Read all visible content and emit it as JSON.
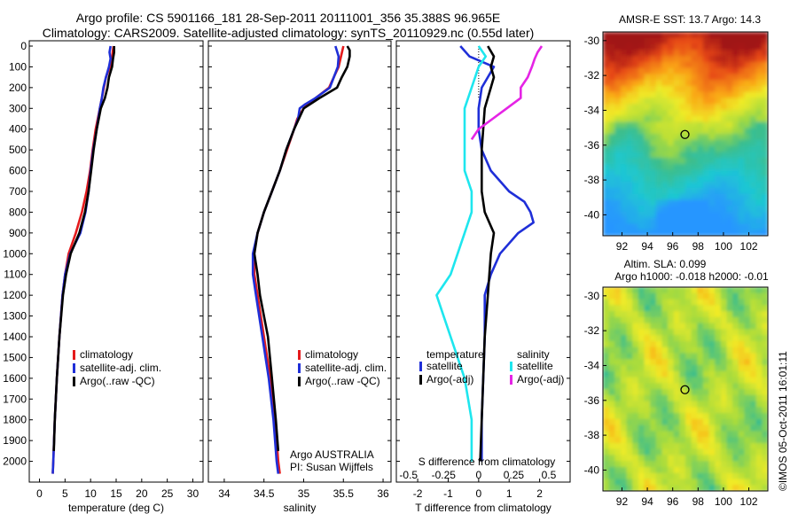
{
  "header": {
    "title_line1": "Argo profile: CS 5901166_181 28-Sep-2011 20111001_356 35.388S 96.965E",
    "title_line2": "Climatology: CARS2009. Satellite-adjusted climatology: synTS_20110929.nc (0.55d later)"
  },
  "depth_axis": {
    "ticks": [
      "0",
      "100",
      "200",
      "300",
      "400",
      "500",
      "600",
      "700",
      "800",
      "900",
      "1000",
      "1100",
      "1200",
      "1300",
      "1400",
      "1500",
      "1600",
      "1700",
      "1800",
      "1900",
      "2000"
    ],
    "range": [
      0,
      2100
    ]
  },
  "colors": {
    "climatology": "#e41a1c",
    "satellite": "#1f2fd8",
    "argo": "#000000",
    "sal_satellite": "#1ee6ee",
    "sal_argo": "#e524e5"
  },
  "legend": {
    "climatology": "climatology",
    "satellite_adj": "satellite-adj. clim.",
    "argo": "Argo(..raw -QC)"
  },
  "chart_data": [
    {
      "type": "line",
      "panel": "temperature",
      "xlabel": "temperature (deg C)",
      "xticks": [
        "0",
        "5",
        "10",
        "15",
        "20",
        "25",
        "30"
      ],
      "xlim": [
        -2,
        32
      ],
      "ylim": [
        0,
        2100
      ],
      "series": [
        {
          "name": "climatology",
          "color": "#e41a1c",
          "depth": [
            0,
            30,
            60,
            100,
            150,
            200,
            250,
            300,
            400,
            500,
            600,
            700,
            800,
            900,
            1000,
            1100,
            1200,
            1400,
            1600,
            1800,
            2000,
            2060
          ],
          "values": [
            14.5,
            14.3,
            14.2,
            13.8,
            13.0,
            12.6,
            12.2,
            11.8,
            11.0,
            10.4,
            9.9,
            9.2,
            8.3,
            7.1,
            5.7,
            5.0,
            4.5,
            3.9,
            3.4,
            3.0,
            2.7,
            2.6
          ]
        },
        {
          "name": "satellite-adj. clim.",
          "color": "#1f2fd8",
          "depth": [
            0,
            30,
            60,
            100,
            150,
            200,
            250,
            300,
            400,
            500,
            600,
            700,
            800,
            900,
            1000,
            1100,
            1200,
            1400,
            1600,
            1800,
            2000,
            2060
          ],
          "values": [
            13.9,
            13.7,
            13.9,
            13.6,
            13.0,
            12.5,
            12.2,
            11.8,
            11.2,
            10.5,
            10.0,
            9.6,
            9.0,
            8.0,
            6.0,
            5.0,
            4.5,
            3.9,
            3.4,
            3.0,
            2.7,
            2.6
          ]
        },
        {
          "name": "Argo(..raw -QC)",
          "color": "#000000",
          "depth": [
            0,
            30,
            60,
            100,
            150,
            200,
            250,
            300,
            400,
            500,
            600,
            700,
            800,
            900,
            1000,
            1100,
            1200,
            1400,
            1600,
            1800,
            1950
          ],
          "values": [
            14.6,
            14.6,
            14.4,
            14.2,
            13.6,
            13.3,
            12.8,
            12.0,
            11.2,
            10.6,
            10.1,
            9.6,
            8.9,
            7.8,
            6.1,
            5.2,
            4.6,
            3.9,
            3.4,
            3.0,
            2.8
          ]
        }
      ],
      "legend": [
        "climatology",
        "satellite-adj. clim.",
        "Argo(..raw -QC)"
      ]
    },
    {
      "type": "line",
      "panel": "salinity",
      "xlabel": "salinity",
      "xticks": [
        "34",
        "34.5",
        "35",
        "35.5",
        "36"
      ],
      "xlim": [
        33.8,
        36.1
      ],
      "ylim": [
        0,
        2100
      ],
      "annotation": [
        "Argo AUSTRALIA",
        "PI: Susan Wijffels"
      ],
      "series": [
        {
          "name": "climatology",
          "color": "#e41a1c",
          "depth": [
            0,
            50,
            100,
            150,
            200,
            250,
            300,
            350,
            400,
            500,
            600,
            700,
            800,
            900,
            1000,
            1100,
            1200,
            1400,
            1600,
            1800,
            2000,
            2060
          ],
          "values": [
            35.5,
            35.47,
            35.44,
            35.38,
            35.32,
            35.15,
            35.0,
            34.92,
            34.88,
            34.79,
            34.7,
            34.6,
            34.5,
            34.42,
            34.37,
            34.38,
            34.42,
            34.5,
            34.58,
            34.64,
            34.68,
            34.7
          ]
        },
        {
          "name": "satellite-adj. clim.",
          "color": "#1f2fd8",
          "depth": [
            0,
            50,
            100,
            150,
            200,
            250,
            280,
            300,
            350,
            400,
            500,
            600,
            700,
            800,
            900,
            1000,
            1100,
            1200,
            1400,
            1600,
            1800,
            2000,
            2060
          ],
          "values": [
            35.4,
            35.44,
            35.43,
            35.38,
            35.33,
            35.15,
            35.02,
            34.95,
            34.93,
            34.88,
            34.78,
            34.7,
            34.6,
            34.5,
            34.42,
            34.36,
            34.36,
            34.4,
            34.48,
            34.56,
            34.62,
            34.66,
            34.68
          ]
        },
        {
          "name": "Argo(..raw -QC)",
          "color": "#000000",
          "depth": [
            0,
            20,
            50,
            100,
            150,
            200,
            250,
            300,
            400,
            500,
            600,
            700,
            800,
            900,
            1000,
            1100,
            1200,
            1400,
            1600,
            1800,
            1950
          ],
          "values": [
            35.55,
            35.58,
            35.58,
            35.55,
            35.48,
            35.42,
            35.2,
            35.0,
            34.88,
            34.78,
            34.7,
            34.6,
            34.5,
            34.42,
            34.38,
            34.42,
            34.45,
            34.55,
            34.6,
            34.65,
            34.68
          ]
        }
      ],
      "legend": [
        "climatology",
        "satellite-adj. clim.",
        "Argo(..raw -QC)"
      ]
    },
    {
      "type": "line",
      "panel": "difference",
      "xlabel": "T difference from climatology",
      "xlabel_top": "S difference from climatology",
      "xticks": [
        "-2",
        "-1",
        "0",
        "1",
        "2"
      ],
      "xticks_top": [
        "-0.5",
        "-0.25",
        "0",
        "0.25",
        "0.5"
      ],
      "xlim": [
        -2.7,
        3.0
      ],
      "ylim": [
        0,
        2100
      ],
      "legend_headers": [
        "temperature",
        "salinity"
      ],
      "legend_labels": [
        "satellite",
        "Argo(-adj)",
        "satellite",
        "Argo(-adj)"
      ],
      "series": [
        {
          "name": "satellite",
          "group": "temperature",
          "color": "#1f2fd8",
          "depth": [
            0,
            50,
            100,
            150,
            200,
            300,
            400,
            500,
            600,
            700,
            750,
            800,
            850,
            900,
            1000,
            1100,
            1200,
            1400,
            1600,
            1800,
            2000
          ],
          "values": [
            -0.6,
            -0.3,
            0.5,
            0.3,
            0.1,
            0.0,
            0.0,
            0.1,
            0.4,
            1.0,
            1.5,
            1.7,
            1.8,
            1.3,
            0.7,
            0.4,
            0.2,
            0.2,
            0.15,
            0.1,
            0.1
          ]
        },
        {
          "name": "Argo(-adj)",
          "group": "temperature",
          "color": "#000000",
          "depth": [
            0,
            50,
            100,
            150,
            200,
            300,
            400,
            500,
            600,
            700,
            800,
            900,
            1000,
            1100,
            1200,
            1400,
            1600,
            1800,
            2000
          ],
          "values": [
            0.3,
            0.5,
            0.4,
            0.5,
            0.4,
            0.2,
            0.15,
            0.1,
            0.1,
            0.1,
            0.2,
            0.5,
            0.4,
            0.35,
            0.3,
            0.2,
            0.15,
            0.1,
            0.05
          ]
        },
        {
          "name": "satellite",
          "group": "salinity",
          "color": "#1ee6ee",
          "depth": [
            0,
            50,
            100,
            200,
            300,
            400,
            500,
            600,
            700,
            800,
            900,
            1000,
            1100,
            1200,
            1300,
            1400,
            1600,
            1800,
            2000
          ],
          "values": [
            0.0,
            0.05,
            0.0,
            -0.05,
            -0.1,
            -0.1,
            -0.1,
            -0.1,
            -0.05,
            -0.05,
            -0.1,
            -0.15,
            -0.2,
            -0.3,
            -0.25,
            -0.2,
            -0.1,
            -0.05,
            -0.05
          ]
        },
        {
          "name": "Argo(-adj)",
          "group": "salinity",
          "color": "#e524e5",
          "depth": [
            0,
            30,
            60,
            100,
            150,
            200,
            250,
            300,
            350,
            400,
            450
          ],
          "values": [
            0.45,
            0.42,
            0.4,
            0.38,
            0.35,
            0.3,
            0.3,
            0.2,
            0.1,
            0.0,
            -0.05
          ]
        }
      ]
    },
    {
      "type": "heatmap",
      "panel": "sst_map",
      "title": "AMSR-E SST: 13.7  Argo: 14.3",
      "xticks": [
        "92",
        "94",
        "96",
        "98",
        "100",
        "102"
      ],
      "yticks": [
        "-30",
        "-32",
        "-34",
        "-36",
        "-38",
        "-40"
      ],
      "xlim": [
        90.5,
        103.5
      ],
      "ylim": [
        -41.2,
        -29.5
      ],
      "marker": {
        "lon": 96.965,
        "lat": -35.388
      }
    },
    {
      "type": "heatmap",
      "panel": "sla_map",
      "title_line1": "Altim. SLA: 0.099",
      "title_line2": "Argo h1000: -0.018  h2000: -0.01",
      "xticks": [
        "92",
        "94",
        "96",
        "98",
        "100",
        "102"
      ],
      "yticks": [
        "-30",
        "-32",
        "-34",
        "-36",
        "-38",
        "-40"
      ],
      "xlim": [
        90.5,
        103.5
      ],
      "ylim": [
        -41.2,
        -29.5
      ],
      "marker": {
        "lon": 96.965,
        "lat": -35.388
      }
    }
  ],
  "footer": {
    "credit": "©IMOS 05-Oct-2011 16:01:11"
  }
}
